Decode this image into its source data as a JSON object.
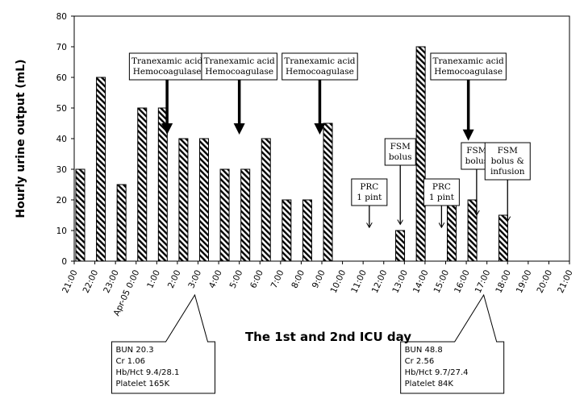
{
  "chart_data": {
    "type": "bar",
    "title": "",
    "xlabel": "The 1st and 2nd ICU day",
    "ylabel": "Hourly urine output (mL)",
    "ylim": [
      0,
      80
    ],
    "yticks": [
      "0",
      "10",
      "20",
      "30",
      "40",
      "50",
      "60",
      "70",
      "80"
    ],
    "grid": false,
    "bar_pattern": "diagonal-hatch",
    "tick_labels": [
      "21:00",
      "22:00",
      "23:00",
      "Apr-05 0:00",
      "1:00",
      "2:00",
      "3:00",
      "4:00",
      "5:00",
      "6:00",
      "7:00",
      "8:00",
      "9:00",
      "10:00",
      "11:00",
      "12:00",
      "13:00",
      "14:00",
      "15:00",
      "16:00",
      "17:00",
      "18:00",
      "19:00",
      "20:00",
      "21:00"
    ],
    "bars": [
      {
        "time": 21.0,
        "value": 30
      },
      {
        "time": 22.0,
        "value": 60
      },
      {
        "time": 23.0,
        "value": 25
      },
      {
        "time": 24.0,
        "value": 50
      },
      {
        "time": 25.0,
        "value": 50
      },
      {
        "time": 26.0,
        "value": 40
      },
      {
        "time": 27.0,
        "value": 40
      },
      {
        "time": 28.0,
        "value": 30
      },
      {
        "time": 29.0,
        "value": 30
      },
      {
        "time": 30.0,
        "value": 40
      },
      {
        "time": 31.0,
        "value": 20
      },
      {
        "time": 32.0,
        "value": 20
      },
      {
        "time": 33.0,
        "value": 45
      },
      {
        "time": 36.5,
        "value": 10
      },
      {
        "time": 37.5,
        "value": 70
      },
      {
        "time": 39.0,
        "value": 20
      },
      {
        "time": 40.0,
        "value": 20
      },
      {
        "time": 41.5,
        "value": 15
      }
    ],
    "annotations": [
      {
        "lines": [
          "Tranexamic acid",
          "Hemocoagulase"
        ],
        "time": 25.5,
        "arrow_to": 40,
        "heavy": true
      },
      {
        "lines": [
          "Tranexamic acid",
          "Hemocoagulase"
        ],
        "time": 29.0,
        "arrow_to": 40,
        "heavy": true
      },
      {
        "lines": [
          "Tranexamic acid",
          "Hemocoagulase"
        ],
        "time": 32.9,
        "arrow_to": 40,
        "heavy": true
      },
      {
        "lines": [
          "Tranexamic acid",
          "Hemocoagulase"
        ],
        "time": 40.1,
        "arrow_to": 38,
        "heavy": true
      },
      {
        "lines": [
          "PRC",
          "1 pint"
        ],
        "time": 35.3,
        "arrow_to": 11,
        "heavy": false
      },
      {
        "lines": [
          "FSM",
          "bolus"
        ],
        "time": 36.8,
        "arrow_to": 12,
        "heavy": false
      },
      {
        "lines": [
          "PRC",
          "1 pint"
        ],
        "time": 38.8,
        "arrow_to": 11,
        "heavy": false
      },
      {
        "lines": [
          "FSM",
          "bolus"
        ],
        "time": 40.5,
        "arrow_to": 15,
        "heavy": false
      },
      {
        "lines": [
          "FSM",
          "bolus &",
          "infusion"
        ],
        "time": 42.0,
        "arrow_to": 13,
        "heavy": false
      }
    ],
    "callouts": [
      {
        "lines": [
          "BUN 20.3",
          "Cr 1.06",
          "Hb/Hct 9.4/28.1",
          "Platelet 165K"
        ],
        "time": 27.0
      },
      {
        "lines": [
          "BUN 48.8",
          "Cr 2.56",
          "Hb/Hct 9.7/27.4",
          "Platelet 84K"
        ],
        "time": 41.0
      }
    ]
  }
}
